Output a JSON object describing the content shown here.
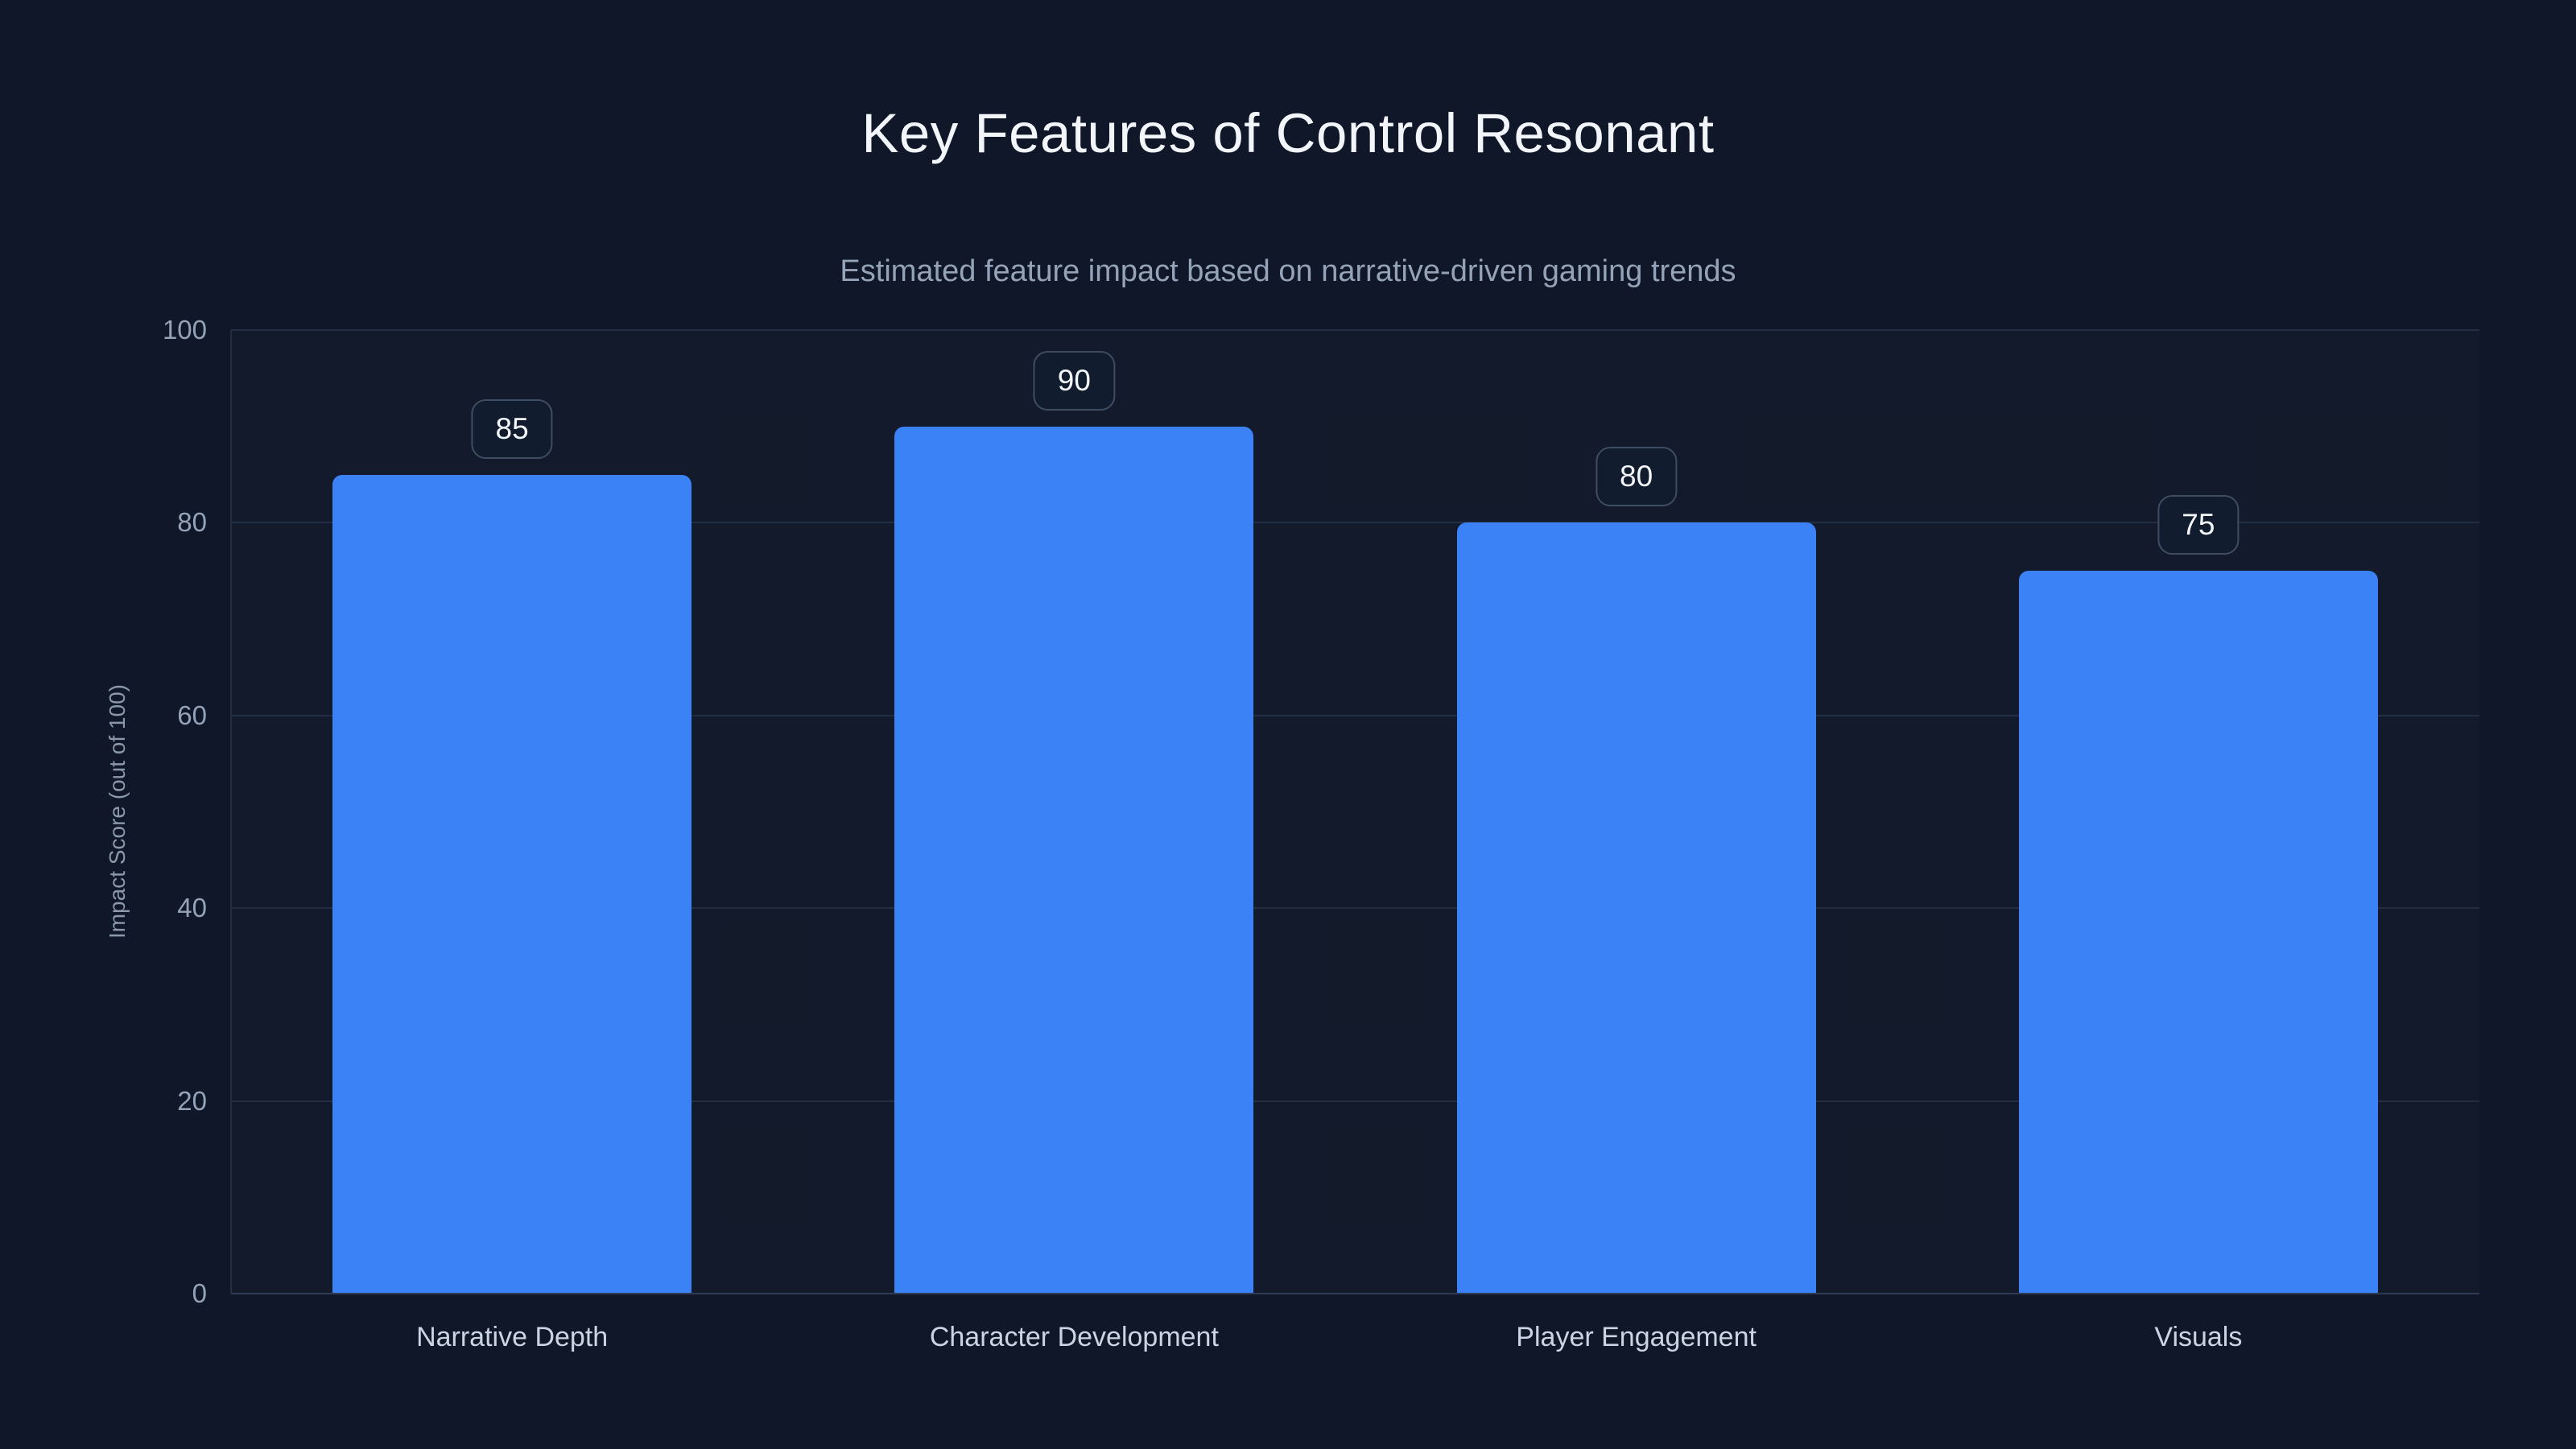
{
  "header": {
    "title": "Key Features of Control Resonant",
    "subtitle": "Estimated feature impact based on narrative-driven gaming trends"
  },
  "chart_data": {
    "type": "bar",
    "title": "Key Features of Control Resonant",
    "subtitle": "Estimated feature impact based on narrative-driven gaming trends",
    "categories": [
      "Narrative Depth",
      "Character Development",
      "Player Engagement",
      "Visuals"
    ],
    "values": [
      85,
      90,
      80,
      75
    ],
    "value_labels": [
      "85",
      "90",
      "80",
      "75"
    ],
    "xlabel": "",
    "ylabel": "Impact Score (out of 100)",
    "ylim": [
      0,
      100
    ],
    "yticks": [
      0,
      20,
      40,
      60,
      80,
      100
    ],
    "grid": true,
    "legend": false,
    "bar_color": "#3b82f6"
  },
  "colors": {
    "background": "#0f1728",
    "bar": "#3b82f6",
    "grid": "#232e44",
    "axis": "#2e3b52",
    "title": "#f2f5f9",
    "subtitle": "#94a3b8",
    "tick": "#94a3b8",
    "xlabel": "#cbd5e1",
    "badge_border": "#3f4d63",
    "badge_text": "#f4f7fb"
  }
}
